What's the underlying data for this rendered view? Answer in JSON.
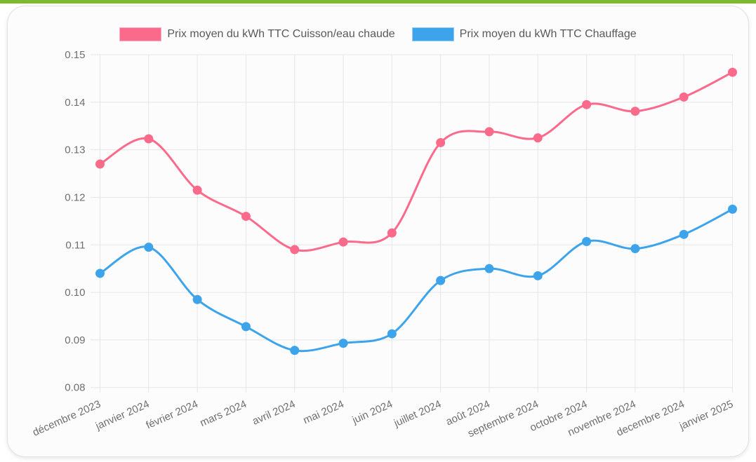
{
  "page": {
    "accent_bar_color": "#7CBA2F",
    "card_background": "#FCFCFC"
  },
  "chart_data": {
    "type": "line",
    "title": "",
    "xlabel": "",
    "ylabel": "",
    "categories": [
      "décembre 2023",
      "janvier 2024",
      "février 2024",
      "mars 2024",
      "avril 2024",
      "mai 2024",
      "juin 2024",
      "juillet 2024",
      "août 2024",
      "septembre 2024",
      "octobre 2024",
      "novembre 2024",
      "decembre 2024",
      "janvier 2025"
    ],
    "series": [
      {
        "name": "Prix moyen du kWh TTC Cuisson/eau chaude",
        "color": "#F96A8B",
        "values": [
          0.127,
          0.1323,
          0.1215,
          0.116,
          0.109,
          0.1106,
          0.1125,
          0.1315,
          0.1338,
          0.1325,
          0.1395,
          0.1381,
          0.1411,
          0.1463
        ]
      },
      {
        "name": "Prix moyen du kWh TTC Chauffage",
        "color": "#3DA4EC",
        "values": [
          0.104,
          0.1095,
          0.0985,
          0.0928,
          0.0878,
          0.0893,
          0.0913,
          0.1025,
          0.105,
          0.1035,
          0.1107,
          0.1092,
          0.1122,
          0.1175
        ]
      }
    ],
    "ylim": [
      0.08,
      0.15
    ],
    "yticks": [
      "0.15",
      "0.14",
      "0.13",
      "0.12",
      "0.11",
      "0.10",
      "0.09",
      "0.08"
    ],
    "grid": true,
    "legend_position": "top",
    "line_tension": "smooth"
  }
}
